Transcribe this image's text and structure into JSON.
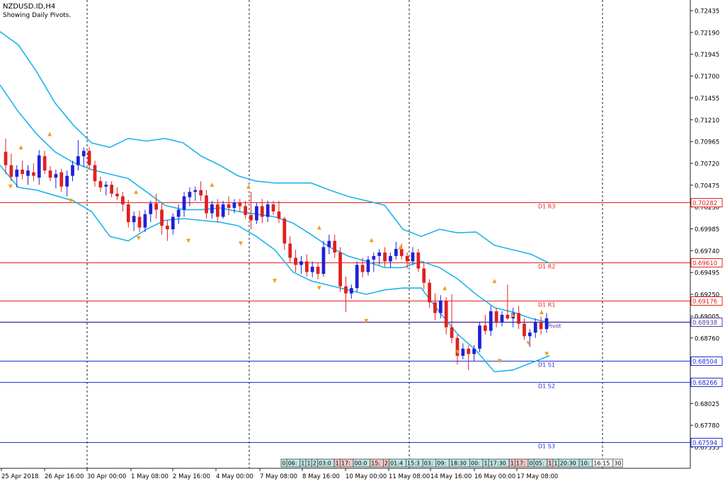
{
  "chart_data": {
    "type": "candlestick",
    "title": "NZDUSD.ID,H4",
    "subtitle": "Showing Daily Pivots.",
    "ylim": [
      0.67535,
      0.72435
    ],
    "y_ticks": [
      "0.72435",
      "0.72190",
      "0.71945",
      "0.71700",
      "0.71455",
      "0.71210",
      "0.70965",
      "0.70720",
      "0.70475",
      "0.70230",
      "0.69985",
      "0.69740",
      "0.69495",
      "0.69250",
      "0.69005",
      "0.68760",
      "0.68515",
      "0.68270",
      "0.68025",
      "0.67780",
      "0.67535"
    ],
    "x_ticks": [
      "25 Apr 2018",
      "26 Apr 16:00",
      "30 Apr 00:00",
      "1 May 08:00",
      "2 May 16:00",
      "4 May 00:00",
      "7 May 08:00",
      "8 May 16:00",
      "10 May 00:00",
      "11 May 08:00",
      "14 May 16:00",
      "16 May 00:00",
      "17 May 08:00"
    ],
    "pivot_lines": [
      {
        "name": "D1 R3",
        "value": 0.70282,
        "label": "0.70282",
        "color": "#e02020"
      },
      {
        "name": "D1 R2",
        "value": 0.6961,
        "label": "0.69610",
        "color": "#e02020"
      },
      {
        "name": "D1 R1",
        "value": 0.69176,
        "label": "0.69176",
        "color": "#e02020"
      },
      {
        "name": "Pivot",
        "value": 0.68938,
        "label": "0.68938",
        "color": "#5a3aa8"
      },
      {
        "name": "D1 S1",
        "value": 0.68504,
        "label": "0.68504",
        "color": "#2030d0"
      },
      {
        "name": "D1 S2",
        "value": 0.68266,
        "label": "0.68266",
        "color": "#2030d0"
      },
      {
        "name": "D1 S3",
        "value": 0.67594,
        "label": "0.67594",
        "color": "#2030d0"
      }
    ],
    "candles": [
      {
        "o": 0.7085,
        "h": 0.71,
        "l": 0.706,
        "c": 0.707
      },
      {
        "o": 0.707,
        "h": 0.7083,
        "l": 0.7052,
        "c": 0.7057
      },
      {
        "o": 0.7057,
        "h": 0.707,
        "l": 0.7045,
        "c": 0.7065
      },
      {
        "o": 0.7065,
        "h": 0.7075,
        "l": 0.7054,
        "c": 0.706
      },
      {
        "o": 0.7058,
        "h": 0.707,
        "l": 0.7048,
        "c": 0.7064
      },
      {
        "o": 0.7062,
        "h": 0.7072,
        "l": 0.7052,
        "c": 0.7058
      },
      {
        "o": 0.7056,
        "h": 0.7087,
        "l": 0.7048,
        "c": 0.7081
      },
      {
        "o": 0.708,
        "h": 0.7086,
        "l": 0.706,
        "c": 0.7064
      },
      {
        "o": 0.7064,
        "h": 0.7069,
        "l": 0.7052,
        "c": 0.7056
      },
      {
        "o": 0.7056,
        "h": 0.7065,
        "l": 0.7044,
        "c": 0.706
      },
      {
        "o": 0.7062,
        "h": 0.7066,
        "l": 0.704,
        "c": 0.7046
      },
      {
        "o": 0.7046,
        "h": 0.7064,
        "l": 0.7035,
        "c": 0.7058
      },
      {
        "o": 0.7058,
        "h": 0.7075,
        "l": 0.7052,
        "c": 0.707
      },
      {
        "o": 0.707,
        "h": 0.7098,
        "l": 0.7064,
        "c": 0.708
      },
      {
        "o": 0.708,
        "h": 0.709,
        "l": 0.7068,
        "c": 0.7086
      },
      {
        "o": 0.7086,
        "h": 0.709,
        "l": 0.7065,
        "c": 0.707
      },
      {
        "o": 0.707,
        "h": 0.7075,
        "l": 0.7046,
        "c": 0.7052
      },
      {
        "o": 0.7052,
        "h": 0.7057,
        "l": 0.704,
        "c": 0.7045
      },
      {
        "o": 0.7046,
        "h": 0.7052,
        "l": 0.7036,
        "c": 0.7048
      },
      {
        "o": 0.7048,
        "h": 0.7052,
        "l": 0.7034,
        "c": 0.7038
      },
      {
        "o": 0.7038,
        "h": 0.7045,
        "l": 0.7031,
        "c": 0.7035
      },
      {
        "o": 0.7035,
        "h": 0.704,
        "l": 0.7018,
        "c": 0.7026
      },
      {
        "o": 0.7026,
        "h": 0.7031,
        "l": 0.7,
        "c": 0.7006
      },
      {
        "o": 0.7006,
        "h": 0.7018,
        "l": 0.6996,
        "c": 0.7013
      },
      {
        "o": 0.7012,
        "h": 0.7019,
        "l": 0.6995,
        "c": 0.7
      },
      {
        "o": 0.7,
        "h": 0.702,
        "l": 0.6995,
        "c": 0.7015
      },
      {
        "o": 0.7015,
        "h": 0.703,
        "l": 0.7006,
        "c": 0.7027
      },
      {
        "o": 0.7027,
        "h": 0.7038,
        "l": 0.701,
        "c": 0.702
      },
      {
        "o": 0.702,
        "h": 0.7028,
        "l": 0.6992,
        "c": 0.7002
      },
      {
        "o": 0.7002,
        "h": 0.7008,
        "l": 0.6985,
        "c": 0.6998
      },
      {
        "o": 0.6998,
        "h": 0.7016,
        "l": 0.6992,
        "c": 0.7012
      },
      {
        "o": 0.7012,
        "h": 0.7026,
        "l": 0.7004,
        "c": 0.702
      },
      {
        "o": 0.702,
        "h": 0.704,
        "l": 0.7012,
        "c": 0.7035
      },
      {
        "o": 0.7034,
        "h": 0.7045,
        "l": 0.7024,
        "c": 0.704
      },
      {
        "o": 0.704,
        "h": 0.7046,
        "l": 0.703,
        "c": 0.7042
      },
      {
        "o": 0.7042,
        "h": 0.7052,
        "l": 0.703,
        "c": 0.7036
      },
      {
        "o": 0.7036,
        "h": 0.7042,
        "l": 0.701,
        "c": 0.7016
      },
      {
        "o": 0.7016,
        "h": 0.703,
        "l": 0.701,
        "c": 0.7026
      },
      {
        "o": 0.7026,
        "h": 0.7032,
        "l": 0.7006,
        "c": 0.7012
      },
      {
        "o": 0.7012,
        "h": 0.703,
        "l": 0.701,
        "c": 0.7026
      },
      {
        "o": 0.7026,
        "h": 0.7035,
        "l": 0.7014,
        "c": 0.7022
      },
      {
        "o": 0.7022,
        "h": 0.7032,
        "l": 0.7016,
        "c": 0.7028
      },
      {
        "o": 0.7028,
        "h": 0.7032,
        "l": 0.7018,
        "c": 0.7024
      },
      {
        "o": 0.7024,
        "h": 0.703,
        "l": 0.701,
        "c": 0.7014
      },
      {
        "o": 0.7014,
        "h": 0.704,
        "l": 0.6998,
        "c": 0.7008
      },
      {
        "o": 0.7008,
        "h": 0.7028,
        "l": 0.7004,
        "c": 0.7024
      },
      {
        "o": 0.7024,
        "h": 0.7032,
        "l": 0.7005,
        "c": 0.7012
      },
      {
        "o": 0.7012,
        "h": 0.703,
        "l": 0.7006,
        "c": 0.7026
      },
      {
        "o": 0.7026,
        "h": 0.703,
        "l": 0.7014,
        "c": 0.7018
      },
      {
        "o": 0.7018,
        "h": 0.703,
        "l": 0.7005,
        "c": 0.701
      },
      {
        "o": 0.701,
        "h": 0.7012,
        "l": 0.6975,
        "c": 0.6982
      },
      {
        "o": 0.6982,
        "h": 0.699,
        "l": 0.696,
        "c": 0.6966
      },
      {
        "o": 0.6966,
        "h": 0.6975,
        "l": 0.695,
        "c": 0.6958
      },
      {
        "o": 0.6958,
        "h": 0.6968,
        "l": 0.6948,
        "c": 0.6962
      },
      {
        "o": 0.6962,
        "h": 0.697,
        "l": 0.6945,
        "c": 0.695
      },
      {
        "o": 0.695,
        "h": 0.6962,
        "l": 0.6944,
        "c": 0.6956
      },
      {
        "o": 0.6956,
        "h": 0.696,
        "l": 0.6942,
        "c": 0.6948
      },
      {
        "o": 0.6948,
        "h": 0.6985,
        "l": 0.6945,
        "c": 0.6978
      },
      {
        "o": 0.6978,
        "h": 0.6992,
        "l": 0.697,
        "c": 0.6985
      },
      {
        "o": 0.6985,
        "h": 0.6992,
        "l": 0.6966,
        "c": 0.6972
      },
      {
        "o": 0.6972,
        "h": 0.6978,
        "l": 0.6928,
        "c": 0.6934
      },
      {
        "o": 0.6934,
        "h": 0.6945,
        "l": 0.6905,
        "c": 0.6926
      },
      {
        "o": 0.6926,
        "h": 0.6936,
        "l": 0.692,
        "c": 0.6932
      },
      {
        "o": 0.6932,
        "h": 0.6962,
        "l": 0.6928,
        "c": 0.6958
      },
      {
        "o": 0.6958,
        "h": 0.6966,
        "l": 0.6944,
        "c": 0.695
      },
      {
        "o": 0.695,
        "h": 0.6968,
        "l": 0.6946,
        "c": 0.6964
      },
      {
        "o": 0.6964,
        "h": 0.6972,
        "l": 0.695,
        "c": 0.6968
      },
      {
        "o": 0.6968,
        "h": 0.6976,
        "l": 0.6958,
        "c": 0.6972
      },
      {
        "o": 0.6972,
        "h": 0.6978,
        "l": 0.6956,
        "c": 0.6962
      },
      {
        "o": 0.6962,
        "h": 0.6972,
        "l": 0.6955,
        "c": 0.6968
      },
      {
        "o": 0.6968,
        "h": 0.6984,
        "l": 0.6964,
        "c": 0.6976
      },
      {
        "o": 0.6976,
        "h": 0.6982,
        "l": 0.6964,
        "c": 0.6968
      },
      {
        "o": 0.6968,
        "h": 0.6972,
        "l": 0.6954,
        "c": 0.6962
      },
      {
        "o": 0.6962,
        "h": 0.6978,
        "l": 0.6958,
        "c": 0.6972
      },
      {
        "o": 0.6972,
        "h": 0.6976,
        "l": 0.695,
        "c": 0.6954
      },
      {
        "o": 0.6954,
        "h": 0.6962,
        "l": 0.693,
        "c": 0.6938
      },
      {
        "o": 0.6938,
        "h": 0.6942,
        "l": 0.691,
        "c": 0.6916
      },
      {
        "o": 0.6916,
        "h": 0.6926,
        "l": 0.6896,
        "c": 0.6904
      },
      {
        "o": 0.6904,
        "h": 0.6924,
        "l": 0.6898,
        "c": 0.6918
      },
      {
        "o": 0.6918,
        "h": 0.6922,
        "l": 0.688,
        "c": 0.6888
      },
      {
        "o": 0.6888,
        "h": 0.6925,
        "l": 0.687,
        "c": 0.6876
      },
      {
        "o": 0.6876,
        "h": 0.688,
        "l": 0.6846,
        "c": 0.6856
      },
      {
        "o": 0.6856,
        "h": 0.687,
        "l": 0.6852,
        "c": 0.6864
      },
      {
        "o": 0.6864,
        "h": 0.6868,
        "l": 0.684,
        "c": 0.6858
      },
      {
        "o": 0.6858,
        "h": 0.6868,
        "l": 0.685,
        "c": 0.6864
      },
      {
        "o": 0.6864,
        "h": 0.6894,
        "l": 0.686,
        "c": 0.689
      },
      {
        "o": 0.689,
        "h": 0.6902,
        "l": 0.688,
        "c": 0.6884
      },
      {
        "o": 0.6884,
        "h": 0.6912,
        "l": 0.6878,
        "c": 0.6906
      },
      {
        "o": 0.6906,
        "h": 0.691,
        "l": 0.6888,
        "c": 0.6894
      },
      {
        "o": 0.6894,
        "h": 0.6906,
        "l": 0.6889,
        "c": 0.6902
      },
      {
        "o": 0.6902,
        "h": 0.6936,
        "l": 0.6896,
        "c": 0.6898
      },
      {
        "o": 0.6898,
        "h": 0.691,
        "l": 0.6888,
        "c": 0.6904
      },
      {
        "o": 0.6904,
        "h": 0.6912,
        "l": 0.6886,
        "c": 0.6892
      },
      {
        "o": 0.6892,
        "h": 0.6898,
        "l": 0.6874,
        "c": 0.6878
      },
      {
        "o": 0.6878,
        "h": 0.6886,
        "l": 0.6866,
        "c": 0.6882
      },
      {
        "o": 0.6882,
        "h": 0.6898,
        "l": 0.6876,
        "c": 0.6894
      },
      {
        "o": 0.6894,
        "h": 0.69,
        "l": 0.688,
        "c": 0.6886
      },
      {
        "o": 0.6886,
        "h": 0.6904,
        "l": 0.6882,
        "c": 0.6898
      }
    ],
    "upper_band": [
      0.722,
      0.7205,
      0.7175,
      0.714,
      0.7115,
      0.7095,
      0.709,
      0.71,
      0.7097,
      0.71,
      0.7095,
      0.708,
      0.707,
      0.7058,
      0.7052,
      0.705,
      0.705,
      0.705,
      0.7042,
      0.7035,
      0.703,
      0.7025,
      0.6998,
      0.699,
      0.6998,
      0.6994,
      0.6995,
      0.698,
      0.6975,
      0.697,
      0.696
    ],
    "middle_band": [
      0.716,
      0.713,
      0.7105,
      0.7085,
      0.7073,
      0.7065,
      0.706,
      0.7055,
      0.704,
      0.7025,
      0.702,
      0.702,
      0.7022,
      0.7018,
      0.7015,
      0.7012,
      0.7005,
      0.6992,
      0.6978,
      0.6968,
      0.6962,
      0.6955,
      0.6955,
      0.6962,
      0.6955,
      0.6942,
      0.6925,
      0.691,
      0.6905,
      0.6898,
      0.6893
    ],
    "lower_band": [
      0.707,
      0.7045,
      0.7042,
      0.7036,
      0.703,
      0.7018,
      0.699,
      0.6985,
      0.6998,
      0.7008,
      0.701,
      0.7008,
      0.7006,
      0.7002,
      0.699,
      0.6975,
      0.695,
      0.694,
      0.6935,
      0.693,
      0.6925,
      0.693,
      0.6932,
      0.6932,
      0.6905,
      0.688,
      0.6862,
      0.6838,
      0.684,
      0.6848,
      0.6856
    ],
    "fractal_up": [
      [
        8,
        0.709
      ],
      [
        19,
        0.7105
      ],
      [
        52,
        0.704
      ],
      [
        81,
        0.7048
      ],
      [
        95,
        0.7046
      ],
      [
        122,
        0.7
      ],
      [
        142,
        0.6986
      ],
      [
        153,
        0.6978
      ],
      [
        170,
        0.6932
      ],
      [
        189,
        0.694
      ],
      [
        196,
        0.6902
      ],
      [
        207,
        0.6905
      ]
    ],
    "fractal_down": [
      [
        4,
        0.7046
      ],
      [
        27,
        0.703
      ],
      [
        53,
        0.6988
      ],
      [
        72,
        0.6985
      ],
      [
        92,
        0.6982
      ],
      [
        105,
        0.694
      ],
      [
        122,
        0.6932
      ],
      [
        140,
        0.6895
      ],
      [
        175,
        0.686
      ],
      [
        191,
        0.685
      ],
      [
        202,
        0.687
      ],
      [
        209,
        0.6858
      ]
    ],
    "session_labels": [
      "0",
      "06:",
      "1",
      "1",
      "2",
      "03:0",
      "1",
      "17:",
      "00:0",
      "15:",
      "2",
      "01:4",
      "15:3",
      "03:",
      "09:",
      "18:30",
      "00:",
      "1",
      "17:30",
      "1",
      "17:",
      "0",
      "05:",
      "1",
      "1",
      "20:30",
      "10:",
      "16:15",
      "30"
    ],
    "session_colors": [
      "#bfe7e7",
      "#bfe7e7",
      "#bfe7e7",
      "#bfe7e7",
      "#bfe7e7",
      "#bfe7e7",
      "#f2c7c7",
      "#f2c7c7",
      "#bfe7e7",
      "#f2c7c7",
      "#f2c7c7",
      "#bfe7e7",
      "#bfe7e7",
      "#bfe7e7",
      "#bfe7e7",
      "#bfe7e7",
      "#bfe7e7",
      "#bfe7e7",
      "#bfe7e7",
      "#f2c7c7",
      "#f2c7c7",
      "#bfe7e7",
      "#bfe7e7",
      "#f2c7c7",
      "#bfe7e7",
      "#bfe7e7",
      "#bfe7e7",
      "#ffffff",
      "#ffffff"
    ],
    "colors": {
      "bull": "#2020d8",
      "bear": "#e02020",
      "band": "#1eb4ec",
      "grid": "#222222",
      "fractal": "#f0a020"
    }
  }
}
